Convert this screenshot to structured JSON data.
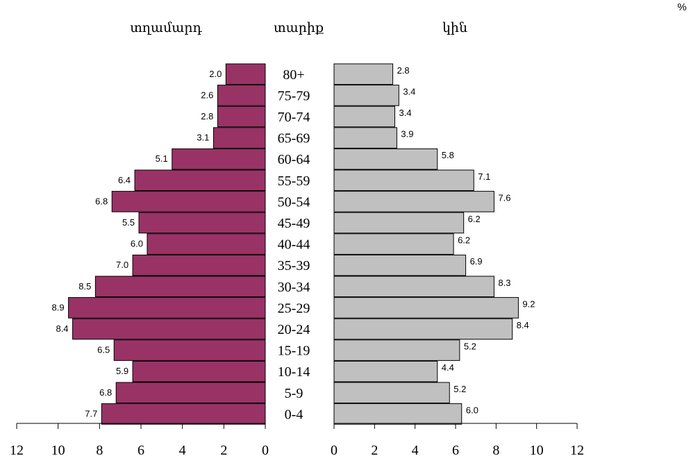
{
  "chart_data": {
    "type": "bar",
    "orientation": "horizontal",
    "subtype": "population-pyramid",
    "unit_label": "%",
    "left_header": "տղամարդ",
    "center_header": "տարիք",
    "right_header": "կին",
    "categories": [
      "80+",
      "75-79",
      "70-74",
      "65-69",
      "60-64",
      "55-59",
      "50-54",
      "45-49",
      "40-44",
      "35-39",
      "30-34",
      "25-29",
      "20-24",
      "15-19",
      "10-14",
      "5-9",
      "0-4"
    ],
    "series": [
      {
        "name": "տղամարդ",
        "color": "#993366",
        "values": [
          2.0,
          2.6,
          2.8,
          3.1,
          5.1,
          6.4,
          6.8,
          5.5,
          6.0,
          7.0,
          8.5,
          8.9,
          8.4,
          6.5,
          5.9,
          6.8,
          7.7
        ],
        "bar_extents": [
          1.9,
          2.3,
          2.3,
          2.5,
          4.5,
          6.3,
          7.4,
          6.1,
          5.7,
          6.4,
          8.2,
          9.5,
          9.3,
          7.3,
          6.4,
          7.2,
          7.9
        ],
        "value_labels": [
          "2.0",
          "2.6",
          "2.8",
          "3.1",
          "5.1",
          "6.4",
          "6.8",
          "5.5",
          "6.0",
          "7.0",
          "8.5",
          "8.9",
          "8.4",
          "6.5",
          "5.9",
          "6.8",
          "7.7"
        ]
      },
      {
        "name": "կին",
        "color": "#c0c0c0",
        "values": [
          2.8,
          3.4,
          3.4,
          3.9,
          5.8,
          7.1,
          7.6,
          6.2,
          6.2,
          6.9,
          8.3,
          9.2,
          8.4,
          5.2,
          4.4,
          5.2,
          6.0
        ],
        "bar_extents": [
          2.9,
          3.2,
          3.0,
          3.1,
          5.1,
          6.9,
          7.9,
          6.4,
          5.9,
          6.5,
          7.9,
          9.1,
          8.8,
          6.2,
          5.1,
          5.7,
          6.3
        ],
        "value_labels": [
          "2.8",
          "3.4",
          "3.4",
          "3.9",
          "5.8",
          "7.1",
          "7.6",
          "6.2",
          "6.2",
          "6.9",
          "8.3",
          "9.2",
          "8.4",
          "5.2",
          "4.4",
          "5.2",
          "6.0"
        ]
      }
    ],
    "left_axis": {
      "ticks": [
        12,
        10,
        8,
        6,
        4,
        2,
        0
      ],
      "tick_labels": [
        "12",
        "10",
        "8",
        "6",
        "4",
        "2",
        "0"
      ]
    },
    "right_axis": {
      "ticks": [
        0,
        2,
        4,
        6,
        8,
        10,
        12
      ],
      "tick_labels": [
        "0",
        "2",
        "4",
        "6",
        "8",
        "10",
        "12"
      ]
    },
    "xlim": [
      0,
      12
    ],
    "grid": false,
    "legend": "none"
  }
}
